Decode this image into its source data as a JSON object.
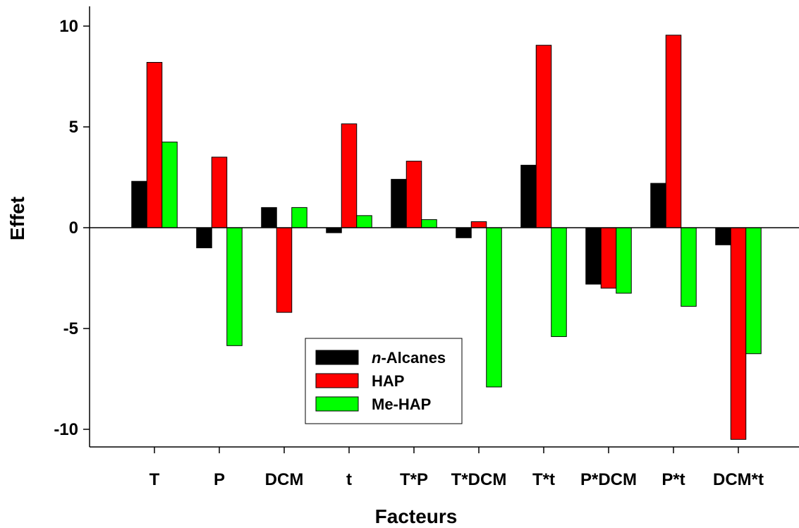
{
  "chart_data": {
    "type": "bar",
    "xlabel": "Facteurs",
    "ylabel": "Effet",
    "ylim": [
      -11,
      11
    ],
    "yticks": [
      -10,
      -5,
      0,
      5,
      10
    ],
    "ytick_labels": [
      "-10",
      "-5",
      "0",
      "5",
      "10"
    ],
    "categories": [
      "T",
      "P",
      "DCM",
      "t",
      "T*P",
      "T*DCM",
      "T*t",
      "P*DCM",
      "P*t",
      "DCM*t"
    ],
    "series": [
      {
        "name_prefix": "n",
        "name_suffix": "-Alcanes",
        "color": "#000000",
        "values": [
          2.3,
          -1.0,
          1.0,
          -0.25,
          2.4,
          -0.5,
          3.1,
          -2.8,
          2.2,
          -0.85
        ]
      },
      {
        "name": "HAP",
        "color": "#ff0000",
        "values": [
          8.2,
          3.5,
          -4.2,
          5.15,
          3.3,
          0.3,
          9.05,
          -3.0,
          9.55,
          -10.5
        ]
      },
      {
        "name": "Me-HAP",
        "color": "#00ff00",
        "values": [
          4.25,
          -5.85,
          1.0,
          0.6,
          0.4,
          -7.9,
          -5.4,
          -3.25,
          -3.9,
          -6.25
        ]
      }
    ],
    "grid": false,
    "legend": "bottom-left"
  }
}
